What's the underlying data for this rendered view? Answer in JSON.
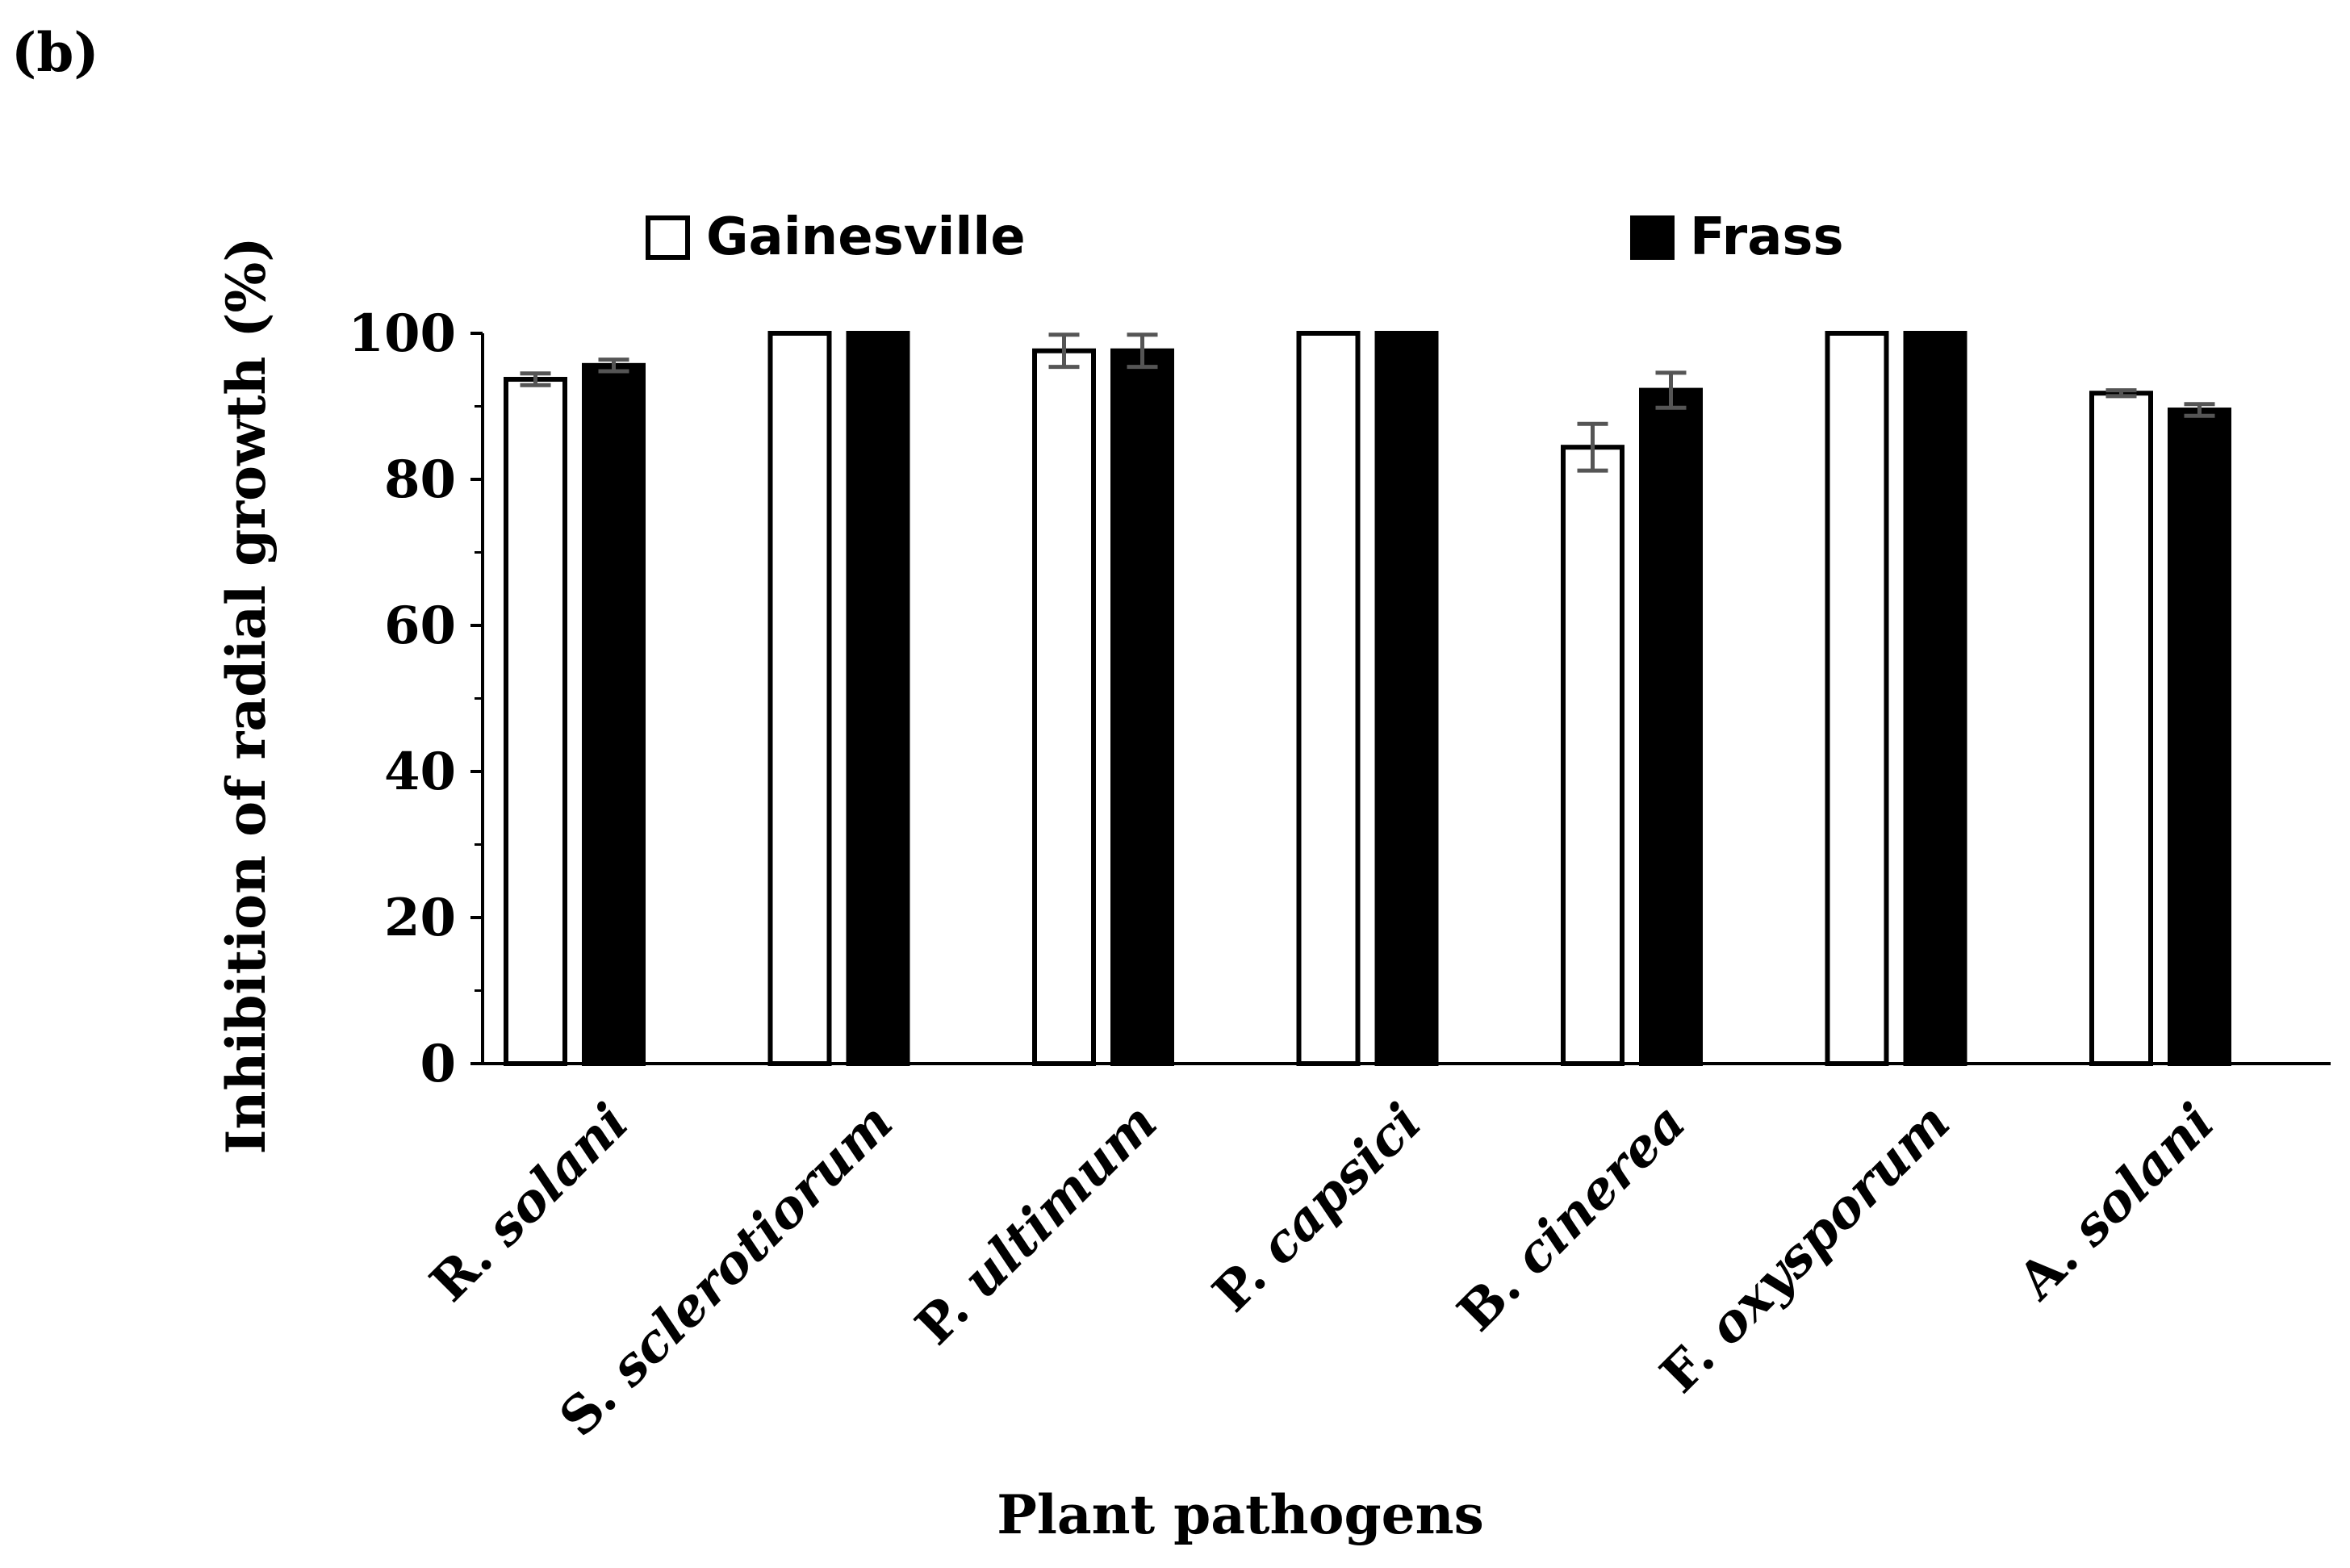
{
  "panel_label": "(b)",
  "colors": {
    "gainesville": "#ffffff",
    "frass": "#000000",
    "error_bar": "#555555",
    "axis": "#000000"
  },
  "chart_data": {
    "type": "bar",
    "title": "",
    "xlabel": "Plant pathogens",
    "ylabel": "Inhibition of radial growth (%)",
    "ylim": [
      0,
      100
    ],
    "yticks": [
      0,
      20,
      40,
      60,
      80,
      100
    ],
    "legend_position": "top",
    "categories": [
      {
        "genus": "R.",
        "species": "solani"
      },
      {
        "genus": "S.",
        "species": "sclerotiorum"
      },
      {
        "genus": "P.",
        "species": "ultimum"
      },
      {
        "genus": "P.",
        "species": "capsici"
      },
      {
        "genus": "B.",
        "species": "cinerea"
      },
      {
        "genus": "F.",
        "species": "oxysporum"
      },
      {
        "genus": "A.",
        "species": "solani"
      }
    ],
    "series": [
      {
        "name": "Gainesville",
        "values": [
          93.7,
          100,
          97.6,
          100,
          84.4,
          100,
          91.8
        ],
        "errors": [
          0.8,
          0,
          2.2,
          0,
          3.2,
          0,
          0.4
        ]
      },
      {
        "name": "Frass",
        "values": [
          95.6,
          100,
          97.6,
          100,
          92.2,
          100,
          89.5
        ],
        "errors": [
          0.8,
          0,
          2.2,
          0,
          2.4,
          0,
          0.8
        ]
      }
    ]
  }
}
